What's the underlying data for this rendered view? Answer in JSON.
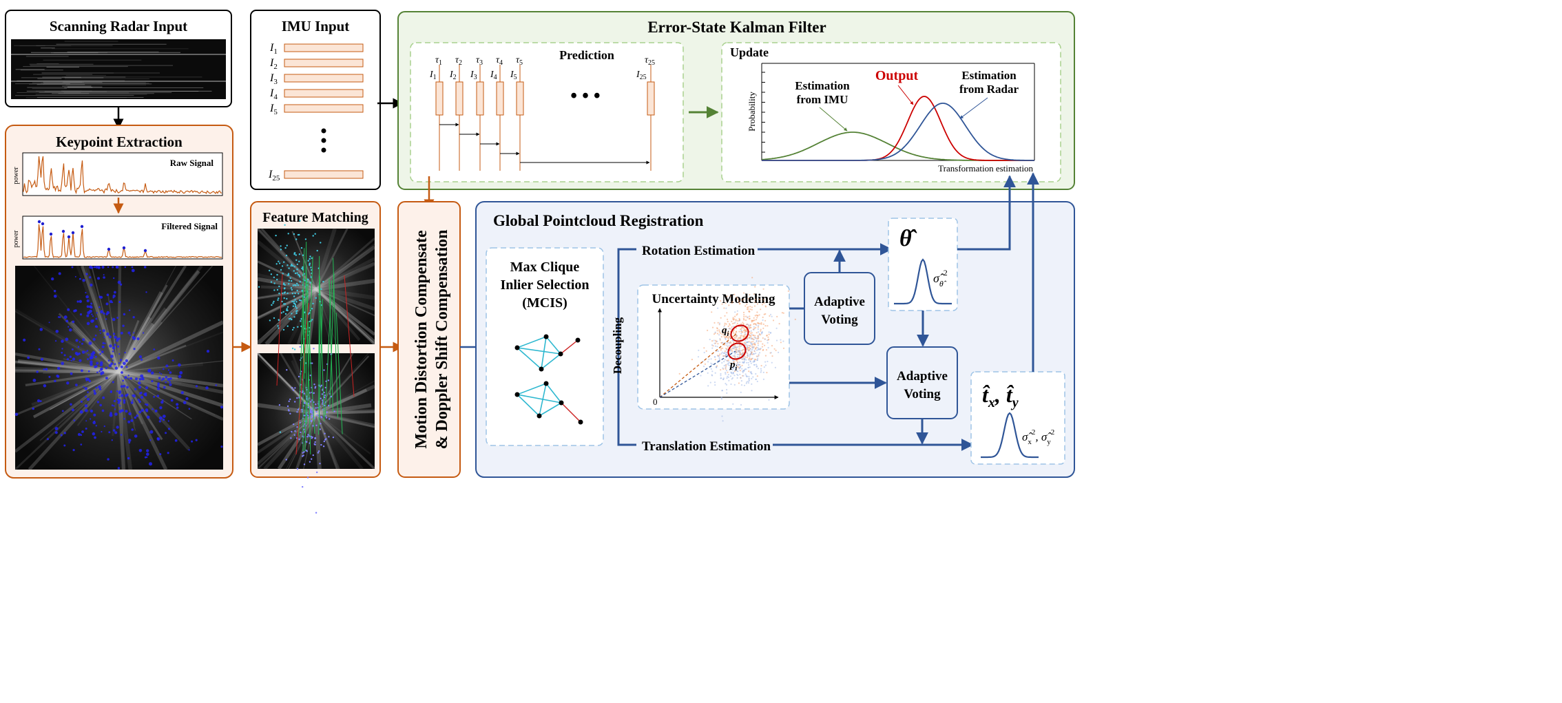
{
  "radar_input": {
    "title": "Scanning Radar Input"
  },
  "keypoint": {
    "title": "Keypoint Extraction",
    "raw_label": "Raw Signal",
    "filtered_label": "Filtered Signal",
    "ylabel": "power"
  },
  "imu": {
    "title": "IMU Input",
    "label_letter": "I",
    "items": [
      {
        "sub": "1"
      },
      {
        "sub": "2"
      },
      {
        "sub": "3"
      },
      {
        "sub": "4"
      },
      {
        "sub": "5"
      }
    ],
    "last": {
      "sub": "25"
    }
  },
  "eskf": {
    "title": "Error-State Kalman Filter",
    "prediction": {
      "title": "Prediction",
      "tau_letter": "τ",
      "steps": [
        {
          "sub": "1"
        },
        {
          "sub": "2"
        },
        {
          "sub": "3"
        },
        {
          "sub": "4"
        },
        {
          "sub": "5"
        }
      ],
      "last_sub": "25"
    },
    "update": {
      "title": "Update",
      "ylabel": "Probability",
      "xlabel": "Transformation estimation",
      "imu_label": [
        "Estimation",
        "from IMU"
      ],
      "output_label": "Output",
      "radar_label": [
        "Estimation",
        "from Radar"
      ]
    }
  },
  "matching": {
    "title": "Feature Matching"
  },
  "compensate": {
    "lines": [
      "Motion Distortion Compensate",
      "& Doppler Shift Compensation"
    ]
  },
  "gpr": {
    "title": "Global Pointcloud Registration",
    "mcis": [
      "Max Clique",
      "Inlier Selection",
      "(MCIS)"
    ],
    "decoupling": "Decoupling",
    "rotation": "Rotation Estimation",
    "translation": "Translation Estimation",
    "uncertainty": "Uncertainty Modeling",
    "origin": "0",
    "q_label": "q",
    "p_label": "p",
    "sub_i": "i",
    "voting": [
      "Adaptive",
      "Voting"
    ],
    "theta_hat": "θ̂",
    "theta_var": "σ̂",
    "t_hat": [
      "t̂",
      "x",
      ", t̂",
      "y"
    ]
  },
  "colors": {
    "orange": "#c55a11",
    "green": "#548235",
    "blue": "#2f5597",
    "cyan": "#2eb8d0",
    "red": "#cc0000",
    "orange_bg": "#fdf1ea",
    "green_bg": "#eef5e8",
    "blue_bg": "#eef2fa"
  }
}
